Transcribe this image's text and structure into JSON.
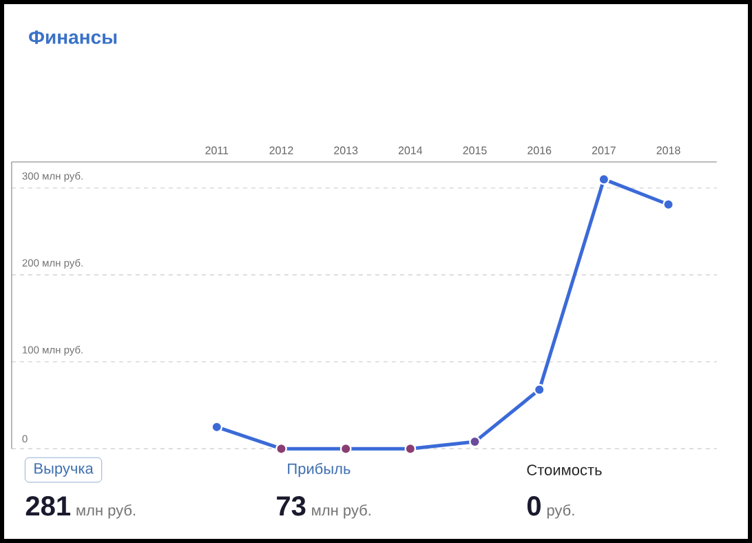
{
  "chart_data": {
    "type": "line",
    "title": "Финансы",
    "categories": [
      "2011",
      "2012",
      "2013",
      "2014",
      "2015",
      "2016",
      "2017",
      "2018"
    ],
    "series": [
      {
        "color": "#3b6ad8",
        "values": [
          25,
          0,
          0,
          0,
          8,
          68,
          310,
          281
        ],
        "colors": [
          "#3b6ad8",
          "#8a3d72",
          "#8a3d72",
          "#8a3d72",
          "#6a4a9e",
          "#3b6ad8",
          "#3b6ad8",
          "#3b6ad8"
        ]
      }
    ],
    "ylim": [
      0,
      330
    ],
    "yticks": [
      0,
      {
        "value": 100,
        "label": "100 млн руб."
      },
      {
        "value": 200,
        "label": "200 млн руб."
      },
      {
        "value": 300,
        "label": "300 млн руб."
      }
    ],
    "grid": "y",
    "marker": "circle",
    "line_style": "solid",
    "annotations": [
      "Выручка",
      "281",
      "млн руб.",
      "Прибыль",
      "73",
      "млн руб.",
      "Стоимость",
      "0",
      "руб."
    ]
  }
}
